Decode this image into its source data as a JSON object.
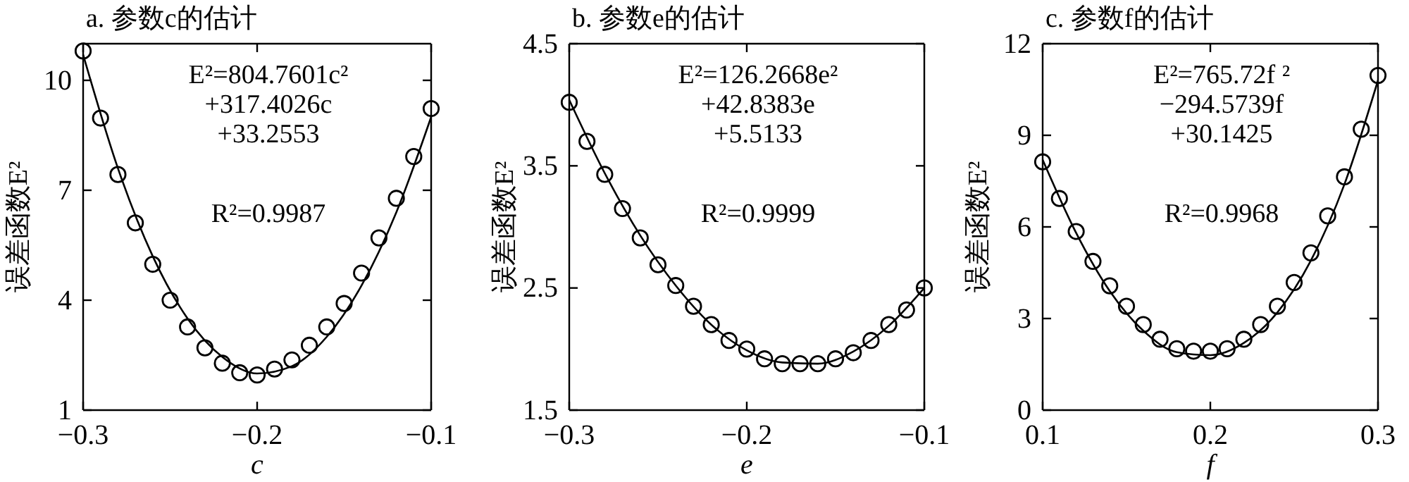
{
  "chart_data": [
    {
      "type": "scatter",
      "title": "a. 参数c的估计",
      "xlabel": "c",
      "ylabel": "误差函数E²",
      "xlim": [
        -0.3,
        -0.1
      ],
      "ylim": [
        1,
        11
      ],
      "xticks": [
        -0.3,
        -0.2,
        -0.1
      ],
      "yticks": [
        1,
        4,
        7,
        10
      ],
      "line_style": "solid",
      "grid": false,
      "annotations": [
        "E²=804.7601c²",
        "+317.4026c",
        "+33.2553",
        "R²=0.9987"
      ],
      "series": [
        {
          "marker": "circle",
          "color": "#000000",
          "x": [
            -0.3,
            -0.29,
            -0.28,
            -0.27,
            -0.26,
            -0.25,
            -0.24,
            -0.23,
            -0.22,
            -0.21,
            -0.2,
            -0.19,
            -0.18,
            -0.17,
            -0.16,
            -0.15,
            -0.14,
            -0.13,
            -0.12,
            -0.11,
            -0.1
          ],
          "values": [
            10.8,
            8.97,
            7.43,
            6.11,
            4.98,
            4.0,
            3.27,
            2.7,
            2.28,
            2.02,
            1.96,
            2.12,
            2.37,
            2.77,
            3.27,
            3.91,
            4.74,
            5.7,
            6.78,
            7.92,
            9.23
          ]
        },
        {
          "type": "line",
          "marker": "none",
          "color": "#000000",
          "x": [
            -0.3,
            -0.28,
            -0.26,
            -0.24,
            -0.22,
            -0.2,
            -0.18,
            -0.16,
            -0.14,
            -0.12,
            -0.1
          ],
          "values": [
            10.7,
            7.6,
            5.2,
            3.5,
            2.45,
            2.0,
            2.2,
            3.0,
            4.4,
            6.4,
            9.0
          ]
        }
      ]
    },
    {
      "type": "scatter",
      "title": "b. 参数e的估计",
      "xlabel": "e",
      "ylabel": "误差函数E²",
      "xlim": [
        -0.3,
        -0.1
      ],
      "ylim": [
        1.5,
        4.5
      ],
      "xticks": [
        -0.3,
        -0.2,
        -0.1
      ],
      "yticks": [
        1.5,
        2.5,
        3.5,
        4.5
      ],
      "line_style": "solid",
      "grid": false,
      "annotations": [
        "E²=126.2668e²",
        "+42.8383e",
        "+5.5133",
        "R²=0.9999"
      ],
      "series": [
        {
          "marker": "circle",
          "color": "#000000",
          "x": [
            -0.3,
            -0.29,
            -0.28,
            -0.27,
            -0.26,
            -0.25,
            -0.24,
            -0.23,
            -0.22,
            -0.21,
            -0.2,
            -0.19,
            -0.18,
            -0.17,
            -0.16,
            -0.15,
            -0.14,
            -0.13,
            -0.12,
            -0.11,
            -0.1
          ],
          "values": [
            4.02,
            3.7,
            3.43,
            3.15,
            2.91,
            2.69,
            2.52,
            2.35,
            2.2,
            2.07,
            2.0,
            1.92,
            1.88,
            1.88,
            1.88,
            1.92,
            1.97,
            2.07,
            2.2,
            2.32,
            2.5
          ]
        },
        {
          "type": "line",
          "marker": "none",
          "color": "#000000",
          "x": [
            -0.3,
            -0.28,
            -0.26,
            -0.24,
            -0.22,
            -0.2,
            -0.18,
            -0.16,
            -0.14,
            -0.12,
            -0.1
          ],
          "values": [
            4.04,
            3.44,
            2.93,
            2.52,
            2.2,
            1.99,
            1.89,
            1.88,
            1.98,
            2.19,
            2.5
          ]
        }
      ]
    },
    {
      "type": "scatter",
      "title": "c. 参数f的估计",
      "xlabel": "f",
      "ylabel": "误差函数E²",
      "xlim": [
        0.1,
        0.3
      ],
      "ylim": [
        0,
        12
      ],
      "xticks": [
        0.1,
        0.2,
        0.3
      ],
      "yticks": [
        0,
        3,
        6,
        9,
        12
      ],
      "line_style": "solid",
      "grid": false,
      "annotations": [
        "E²=765.72f ²",
        "−294.5739f",
        "+30.1425",
        "R²=0.9968"
      ],
      "series": [
        {
          "marker": "circle",
          "color": "#000000",
          "x": [
            0.1,
            0.11,
            0.12,
            0.13,
            0.14,
            0.15,
            0.16,
            0.17,
            0.18,
            0.19,
            0.2,
            0.21,
            0.22,
            0.23,
            0.24,
            0.25,
            0.26,
            0.27,
            0.28,
            0.29,
            0.3
          ],
          "values": [
            8.13,
            6.93,
            5.85,
            4.87,
            4.07,
            3.4,
            2.8,
            2.32,
            2.01,
            1.93,
            1.93,
            2.01,
            2.32,
            2.8,
            3.4,
            4.18,
            5.15,
            6.36,
            7.64,
            9.2,
            10.96
          ]
        },
        {
          "type": "line",
          "marker": "none",
          "color": "#000000",
          "x": [
            0.1,
            0.12,
            0.14,
            0.16,
            0.18,
            0.2,
            0.22,
            0.24,
            0.26,
            0.28,
            0.3
          ],
          "values": [
            8.2,
            5.8,
            3.9,
            2.6,
            1.9,
            1.8,
            2.2,
            3.2,
            4.9,
            7.4,
            10.8
          ]
        }
      ]
    }
  ]
}
